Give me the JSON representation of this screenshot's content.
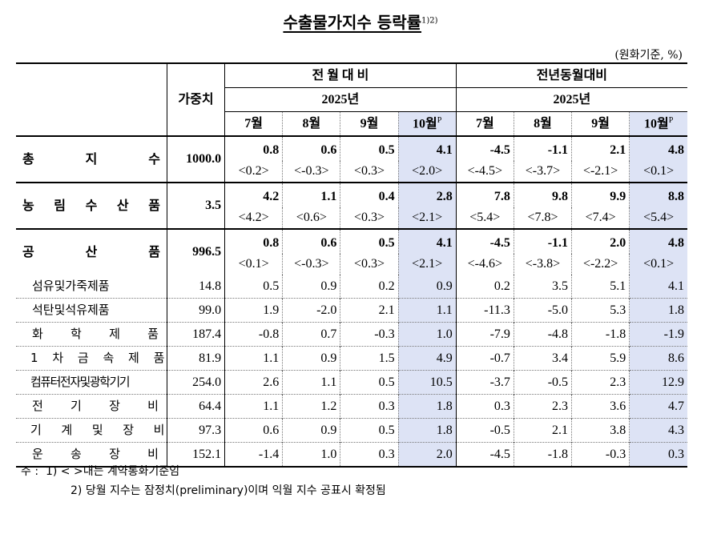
{
  "title": "수출물가지수 등락률",
  "title_sup": "1)2)",
  "unit": "(원화기준, %)",
  "header": {
    "weight": "가중치",
    "mom_group": "전 월 대 비",
    "yoy_group": "전년동월대비",
    "year_mom": "2025년",
    "year_yoy": "2025년",
    "months": [
      "7월",
      "8월",
      "9월",
      "10월"
    ],
    "prelim_mark": "P"
  },
  "rows": [
    {
      "label": "총 지 수",
      "weight": "1000.0",
      "mom": [
        "0.8",
        "0.6",
        "0.5",
        "4.1"
      ],
      "mom_contract": [
        "<0.2>",
        "<-0.3>",
        "<0.3>",
        "<2.0>"
      ],
      "yoy": [
        "-4.5",
        "-1.1",
        "2.1",
        "4.8"
      ],
      "yoy_contract": [
        "<-4.5>",
        "<-3.7>",
        "<-2.1>",
        "<0.1>"
      ]
    },
    {
      "label": "농 림 수 산 품",
      "weight": "3.5",
      "mom": [
        "4.2",
        "1.1",
        "0.4",
        "2.8"
      ],
      "mom_contract": [
        "<4.2>",
        "<0.6>",
        "<0.3>",
        "<2.1>"
      ],
      "yoy": [
        "7.8",
        "9.8",
        "9.9",
        "8.8"
      ],
      "yoy_contract": [
        "<5.4>",
        "<7.8>",
        "<7.4>",
        "<5.4>"
      ]
    },
    {
      "label": "공 산 품",
      "weight": "996.5",
      "mom": [
        "0.8",
        "0.6",
        "0.5",
        "4.1"
      ],
      "mom_contract": [
        "<0.1>",
        "<-0.3>",
        "<0.3>",
        "<2.1>"
      ],
      "yoy": [
        "-4.5",
        "-1.1",
        "2.0",
        "4.8"
      ],
      "yoy_contract": [
        "<-4.6>",
        "<-3.8>",
        "<-2.2>",
        "<0.1>"
      ]
    }
  ],
  "subrows": [
    {
      "label": "섬유및가죽제품",
      "weight": "14.8",
      "mom": [
        "0.5",
        "0.9",
        "0.2",
        "0.9"
      ],
      "yoy": [
        "0.2",
        "3.5",
        "5.1",
        "4.1"
      ]
    },
    {
      "label": "석탄및석유제품",
      "weight": "99.0",
      "mom": [
        "1.9",
        "-2.0",
        "2.1",
        "1.1"
      ],
      "yoy": [
        "-11.3",
        "-5.0",
        "5.3",
        "1.8"
      ]
    },
    {
      "label": "화 학 제 품",
      "weight": "187.4",
      "mom": [
        "-0.8",
        "0.7",
        "-0.3",
        "1.0"
      ],
      "yoy": [
        "-7.9",
        "-4.8",
        "-1.8",
        "-1.9"
      ]
    },
    {
      "label": "1 차 금 속 제 품",
      "weight": "81.9",
      "mom": [
        "1.1",
        "0.9",
        "1.5",
        "4.9"
      ],
      "yoy": [
        "-0.7",
        "3.4",
        "5.9",
        "8.6"
      ]
    },
    {
      "label": "컴퓨터전자및광학기기",
      "weight": "254.0",
      "mom": [
        "2.6",
        "1.1",
        "0.5",
        "10.5"
      ],
      "yoy": [
        "-3.7",
        "-0.5",
        "2.3",
        "12.9"
      ]
    },
    {
      "label": "전 기 장 비",
      "weight": "64.4",
      "mom": [
        "1.1",
        "1.2",
        "0.3",
        "1.8"
      ],
      "yoy": [
        "0.3",
        "2.3",
        "3.6",
        "4.7"
      ]
    },
    {
      "label": "기 계 및 장 비",
      "weight": "97.3",
      "mom": [
        "0.6",
        "0.9",
        "0.5",
        "1.8"
      ],
      "yoy": [
        "-0.5",
        "2.1",
        "3.8",
        "4.3"
      ]
    },
    {
      "label": "운 송 장 비",
      "weight": "152.1",
      "mom": [
        "-1.4",
        "1.0",
        "0.3",
        "2.0"
      ],
      "yoy": [
        "-4.5",
        "-1.8",
        "-0.3",
        "0.3"
      ]
    }
  ],
  "notes": {
    "prefix": "주 :",
    "n1": "1) < >내는 계약통화기준임",
    "n2": "2) 당월 지수는 잠정치(preliminary)이며 익월 지수 공표시 확정됨"
  },
  "colors": {
    "highlight": "#dde3f5"
  }
}
